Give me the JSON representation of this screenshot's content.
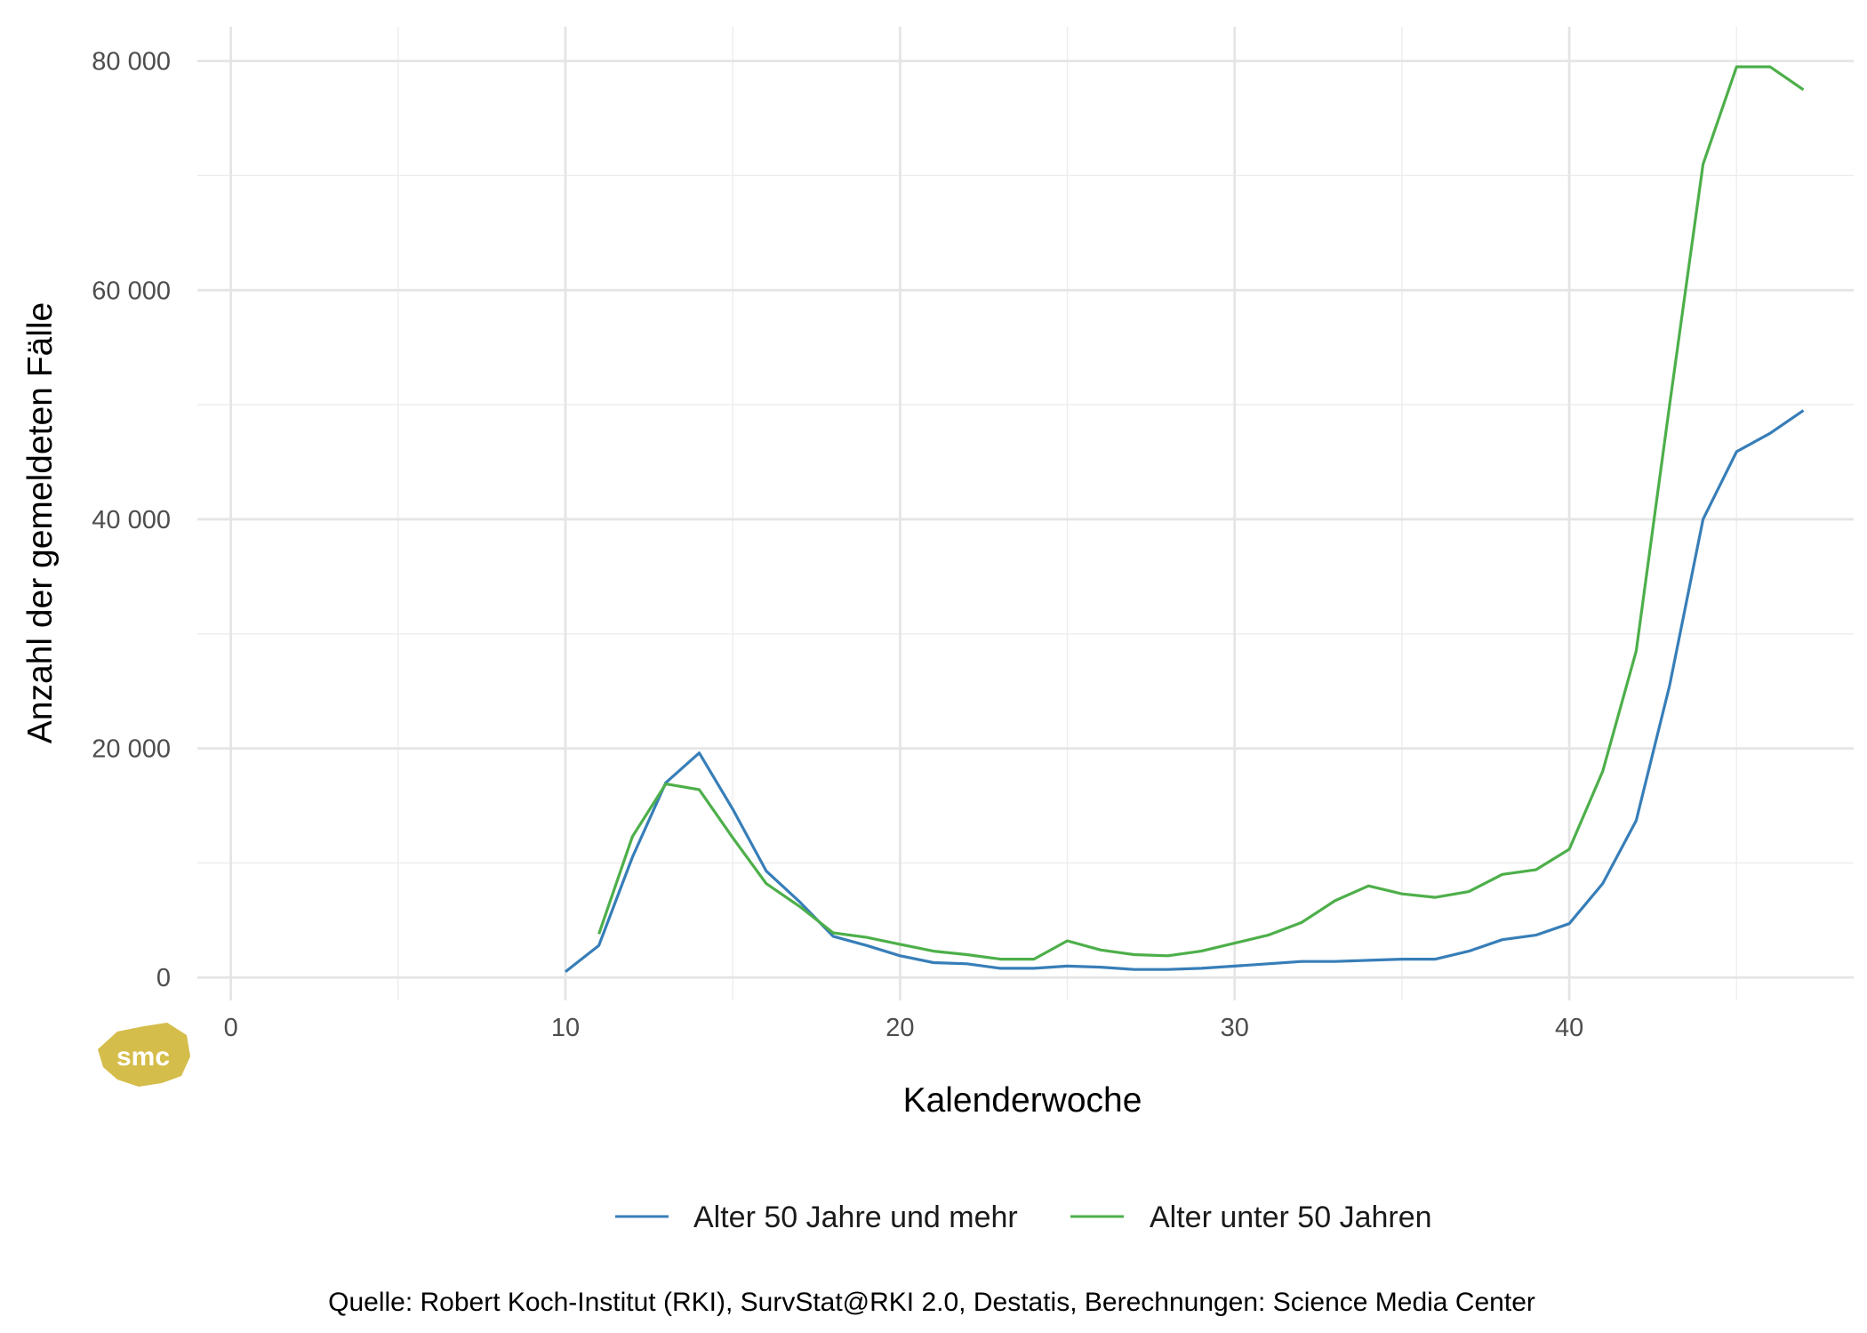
{
  "chart_data": {
    "type": "line",
    "xlabel": "Kalenderwoche",
    "ylabel": "Anzahl der gemeldeten Fälle",
    "xlim": [
      -1,
      48.5
    ],
    "ylim": [
      -2000,
      83000
    ],
    "x_ticks": [
      0,
      10,
      20,
      30,
      40
    ],
    "x_tick_labels": [
      "0",
      "10",
      "20",
      "30",
      "40"
    ],
    "x_minor_ticks": [
      5,
      15,
      25,
      35,
      45
    ],
    "y_ticks": [
      0,
      20000,
      40000,
      60000,
      80000
    ],
    "y_tick_labels": [
      "0",
      "20 000",
      "40 000",
      "60 000",
      "80 000"
    ],
    "y_minor_ticks": [
      10000,
      30000,
      50000,
      70000
    ],
    "grid": true,
    "legend_position": "bottom",
    "series": [
      {
        "name": "Alter 50 Jahre und mehr",
        "color": "#377eb8",
        "x": [
          10,
          11,
          12,
          13,
          14,
          15,
          16,
          17,
          18,
          19,
          20,
          21,
          22,
          23,
          24,
          25,
          26,
          27,
          28,
          29,
          30,
          31,
          32,
          33,
          34,
          35,
          36,
          37,
          38,
          39,
          40,
          41,
          42,
          43,
          44,
          45,
          46,
          47
        ],
        "values": [
          500,
          2800,
          10500,
          17000,
          19600,
          14700,
          9300,
          6600,
          3600,
          2800,
          1900,
          1300,
          1200,
          800,
          800,
          1000,
          900,
          700,
          700,
          800,
          1000,
          1200,
          1400,
          1400,
          1500,
          1600,
          1600,
          2300,
          3300,
          3700,
          4700,
          8200,
          13700,
          25500,
          40000,
          45900,
          47500,
          49500
        ]
      },
      {
        "name": "Alter unter 50 Jahren",
        "color": "#4daf4a",
        "x": [
          11,
          12,
          13,
          14,
          15,
          16,
          17,
          18,
          19,
          20,
          21,
          22,
          23,
          24,
          25,
          26,
          27,
          28,
          29,
          30,
          31,
          32,
          33,
          34,
          35,
          36,
          37,
          38,
          39,
          40,
          41,
          42,
          43,
          44,
          45,
          46,
          47
        ],
        "values": [
          3800,
          12300,
          16900,
          16400,
          12200,
          8200,
          6200,
          3900,
          3500,
          2900,
          2300,
          2000,
          1600,
          1600,
          3200,
          2400,
          2000,
          1900,
          2300,
          3000,
          3700,
          4800,
          6700,
          8000,
          7300,
          7000,
          7500,
          9000,
          9400,
          11200,
          18000,
          28500,
          50000,
          71000,
          79500,
          79500,
          77500
        ]
      }
    ]
  },
  "caption": "Quelle: Robert Koch-Institut (RKI), SurvStat@RKI 2.0, Destatis, Berechnungen: Science Media Center",
  "logo": {
    "text": "smc",
    "color": "#d4bd4a"
  }
}
